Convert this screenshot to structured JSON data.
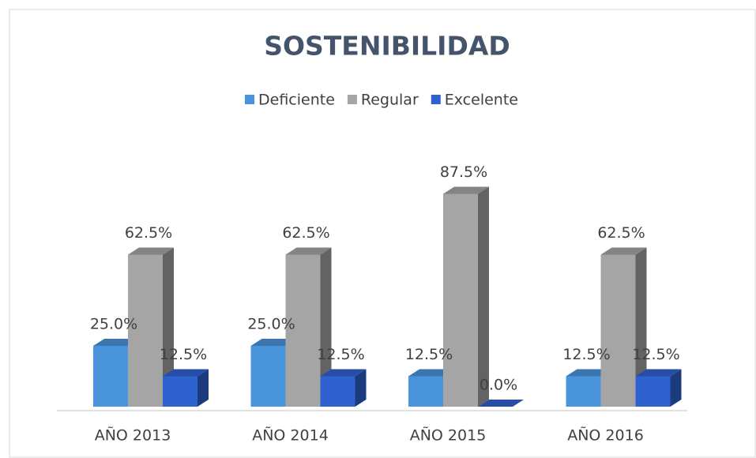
{
  "chart_data": {
    "type": "bar3d",
    "title": "SOSTENIBILIDAD",
    "categories": [
      "AÑO 2013",
      "AÑO 2014",
      "AÑO 2015",
      "AÑO 2016"
    ],
    "series": [
      {
        "name": "Deficiente",
        "color": "#4a94dc",
        "values": [
          25,
          25,
          12.5,
          12.5
        ],
        "value_labels": [
          "25.0%",
          "25.0%",
          "12.5%",
          "12.5%"
        ]
      },
      {
        "name": "Regular",
        "color": "#a5a5a5",
        "values": [
          62.5,
          62.5,
          87.5,
          62.5
        ],
        "value_labels": [
          "62.5%",
          "62.5%",
          "87.5%",
          "62.5%"
        ]
      },
      {
        "name": "Excelente",
        "color": "#2f62cf",
        "values": [
          12.5,
          12.5,
          0,
          12.5
        ],
        "value_labels": [
          "12.5%",
          "12.5%",
          "0.0%",
          "12.5%"
        ]
      }
    ],
    "ylim": [
      0,
      100
    ],
    "legend": "top"
  }
}
